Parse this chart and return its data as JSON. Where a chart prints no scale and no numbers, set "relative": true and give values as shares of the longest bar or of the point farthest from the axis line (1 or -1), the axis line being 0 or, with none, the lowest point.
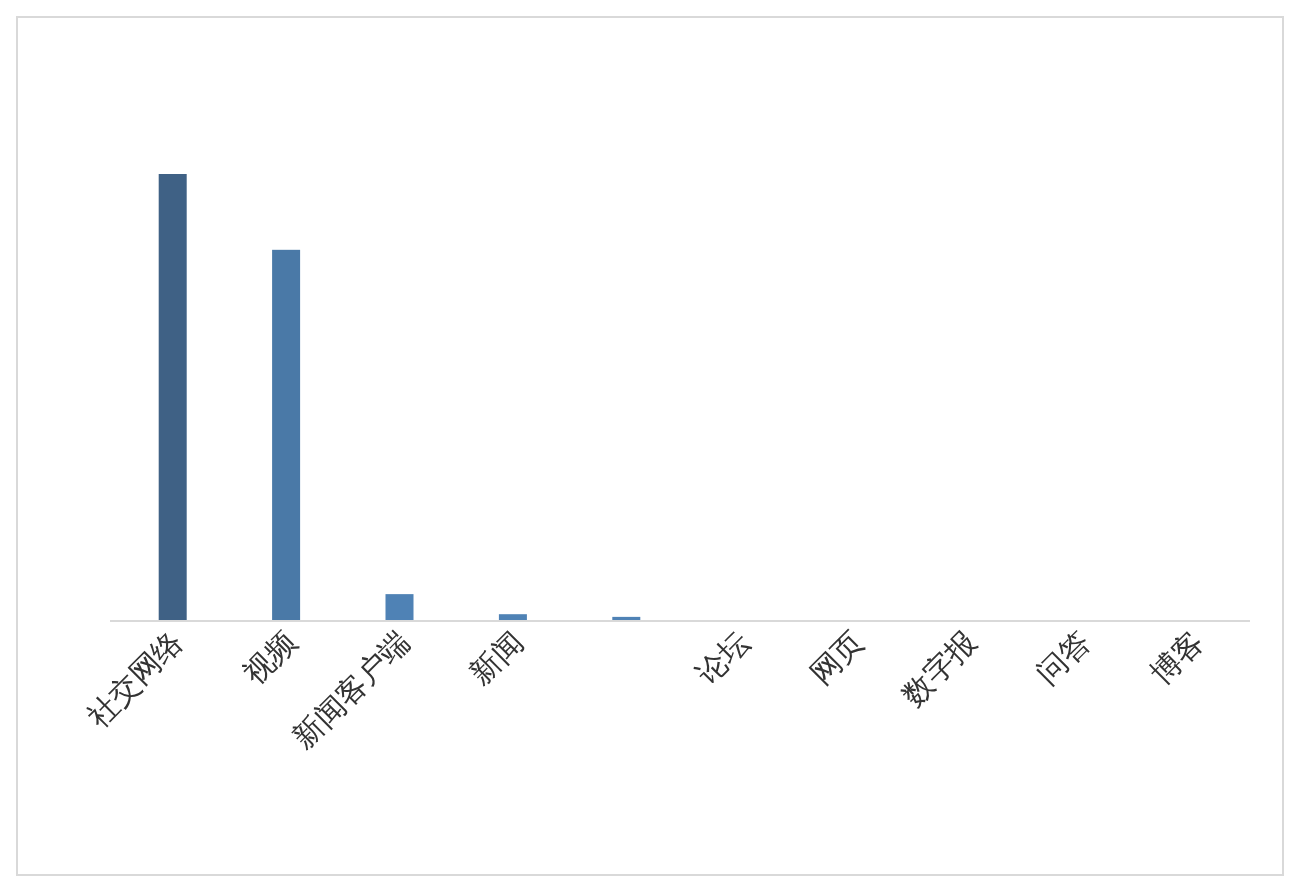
{
  "chart_data": {
    "type": "bar",
    "relative": true,
    "categories": [
      "社交网络",
      "视频",
      "新闻客户端",
      "新闻",
      null,
      "论坛",
      "网页",
      "数字报",
      "问答",
      "博客"
    ],
    "values": [
      1,
      0.83,
      0.058,
      0.013,
      0.007,
      0,
      0,
      0,
      0,
      0
    ],
    "colors": [
      "#3f6185",
      "#4a79a7",
      "#4f82b5",
      "#4f82b5",
      "#4f82b5",
      "#4f82b5",
      "#4f82b5",
      "#4f82b5",
      "#4f82b5",
      "#4f82b5"
    ]
  }
}
